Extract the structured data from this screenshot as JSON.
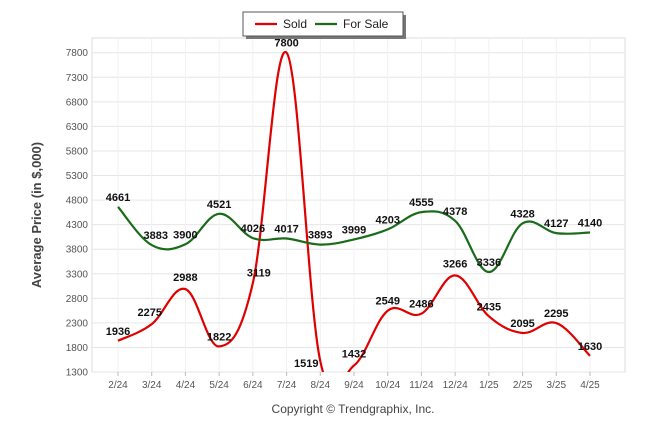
{
  "chart_data": {
    "type": "line",
    "categories": [
      "2/24",
      "3/24",
      "4/24",
      "5/24",
      "6/24",
      "7/24",
      "8/24",
      "9/24",
      "10/24",
      "11/24",
      "12/24",
      "1/25",
      "2/25",
      "3/25",
      "4/25"
    ],
    "series": [
      {
        "name": "Sold",
        "color": "#e00000",
        "values": [
          1936,
          2275,
          2988,
          1822,
          3119,
          7800,
          1519,
          1432,
          2549,
          2486,
          3266,
          2435,
          2095,
          2295,
          1630
        ]
      },
      {
        "name": "For Sale",
        "color": "#1a6b1a",
        "values": [
          4661,
          3883,
          3900,
          4521,
          4026,
          4017,
          3893,
          3999,
          4203,
          4555,
          4378,
          3336,
          4328,
          4127,
          4140
        ]
      }
    ],
    "ylabel": "Average Price (in $,000)",
    "yticks": [
      1300,
      1800,
      2300,
      2800,
      3300,
      3800,
      4300,
      4800,
      5300,
      5800,
      6300,
      6800,
      7300,
      7800
    ],
    "ylim": [
      1300,
      8100
    ],
    "grid": true,
    "legend_position": "top-center"
  },
  "footer": {
    "copyright": "Copyright © Trendgraphix, Inc."
  }
}
